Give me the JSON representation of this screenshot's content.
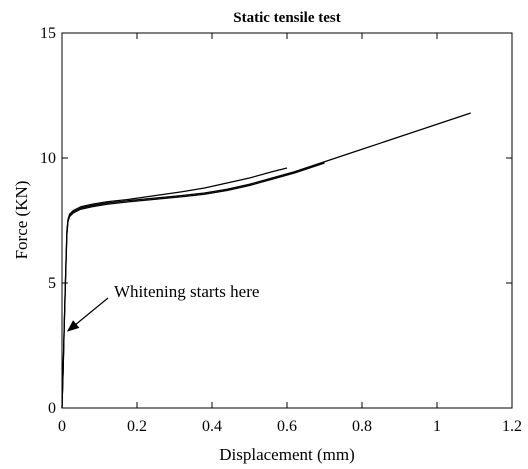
{
  "chart_data": {
    "type": "line",
    "title": "Static tensile test",
    "xlabel": "Displacement (mm)",
    "ylabel": "Force (KN)",
    "xlim": [
      0,
      1.2
    ],
    "ylim": [
      0,
      15
    ],
    "xticks": [
      0,
      0.2,
      0.4,
      0.6,
      0.8,
      1,
      1.2
    ],
    "xtick_labels": [
      "0",
      "0.2",
      "0.4",
      "0.6",
      "0.8",
      "1",
      "1.2"
    ],
    "yticks": [
      0,
      5,
      10,
      15
    ],
    "ytick_labels": [
      "0",
      "5",
      "10",
      "15"
    ],
    "grid": false,
    "legend": "none",
    "line_color": "#000000",
    "series": [
      {
        "x": [
          0,
          0.003,
          0.006,
          0.01,
          0.013,
          0.016,
          0.02,
          0.03,
          0.05,
          0.08,
          0.12,
          0.18,
          0.25,
          0.32,
          0.38,
          0.44,
          0.5,
          0.56,
          0.62,
          0.68,
          0.74,
          0.8,
          0.86,
          0.92,
          0.98,
          1.04,
          1.09
        ],
        "y": [
          0,
          1.5,
          3.3,
          5.5,
          7.0,
          7.5,
          7.7,
          7.85,
          8.0,
          8.1,
          8.2,
          8.3,
          8.4,
          8.5,
          8.6,
          8.75,
          8.95,
          9.2,
          9.45,
          9.75,
          10.05,
          10.35,
          10.65,
          10.95,
          11.25,
          11.55,
          11.8
        ]
      },
      {
        "x": [
          0,
          0.003,
          0.006,
          0.01,
          0.013,
          0.016,
          0.02,
          0.03,
          0.05,
          0.08,
          0.12,
          0.18,
          0.25,
          0.32,
          0.38,
          0.44,
          0.5,
          0.56,
          0.6
        ],
        "y": [
          0,
          1.6,
          3.4,
          5.6,
          7.1,
          7.55,
          7.75,
          7.9,
          8.05,
          8.15,
          8.25,
          8.35,
          8.5,
          8.65,
          8.8,
          9.0,
          9.2,
          9.45,
          9.6
        ]
      },
      {
        "x": [
          0,
          0.003,
          0.006,
          0.01,
          0.013,
          0.016,
          0.02,
          0.03,
          0.05,
          0.08,
          0.12,
          0.18,
          0.25,
          0.32,
          0.38,
          0.44,
          0.5,
          0.56,
          0.62,
          0.7
        ],
        "y": [
          0,
          1.4,
          3.2,
          5.4,
          6.9,
          7.45,
          7.65,
          7.8,
          7.95,
          8.05,
          8.15,
          8.25,
          8.35,
          8.45,
          8.55,
          8.7,
          8.9,
          9.15,
          9.4,
          9.8
        ]
      }
    ],
    "annotations": [
      {
        "text": "Whitening starts here",
        "arrow_to": {
          "x": 0.01,
          "y": 3.0
        }
      }
    ]
  }
}
